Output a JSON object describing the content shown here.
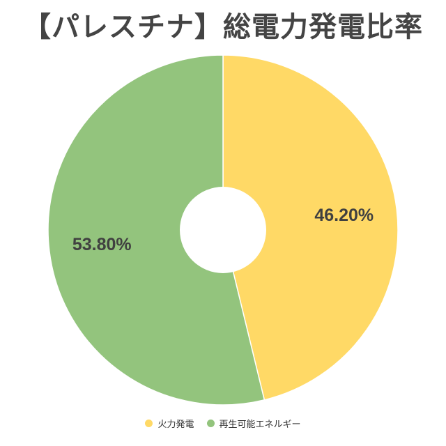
{
  "chart_data": {
    "type": "pie",
    "title": "【パレスチナ】総電力発電比率",
    "labels": [
      "火力発電",
      "再生可能エネルギー"
    ],
    "values": [
      46.2,
      53.8
    ],
    "value_labels": [
      "46.20%",
      "53.80%"
    ],
    "colors": [
      "#FFD966",
      "#93C47D"
    ],
    "donut": true,
    "legend_position": "bottom"
  },
  "legend": {
    "items": [
      {
        "label": "火力発電",
        "color": "#FFD966"
      },
      {
        "label": "再生可能エネルギー",
        "color": "#93C47D"
      }
    ]
  }
}
